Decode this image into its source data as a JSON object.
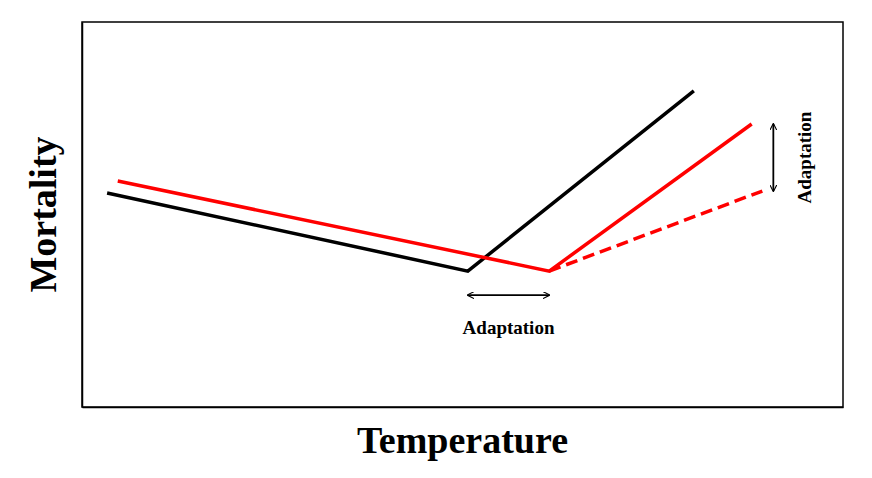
{
  "chart_data": {
    "type": "line",
    "x_label": "Temperature",
    "y_label": "Mortality",
    "xlim": [
      0,
      100
    ],
    "ylim": [
      0,
      100
    ],
    "tick_labels": false,
    "grid": false,
    "series": [
      {
        "color": "#000000",
        "line_style": "solid",
        "x": [
          3.3,
          50.7,
          80.4
        ],
        "values": [
          55.6,
          35.3,
          82.1
        ]
      },
      {
        "color": "#ff0000",
        "line_style": "solid",
        "x": [
          4.7,
          61.4,
          88.0
        ],
        "values": [
          58.7,
          35.3,
          73.5
        ]
      },
      {
        "color": "#ff0000",
        "line_style": "dashed",
        "x": [
          61.4,
          89.4
        ],
        "values": [
          35.3,
          56.1
        ]
      }
    ],
    "annotations": [
      {
        "text": "Adaptation"
      },
      {
        "text": "Adaptation"
      }
    ]
  }
}
